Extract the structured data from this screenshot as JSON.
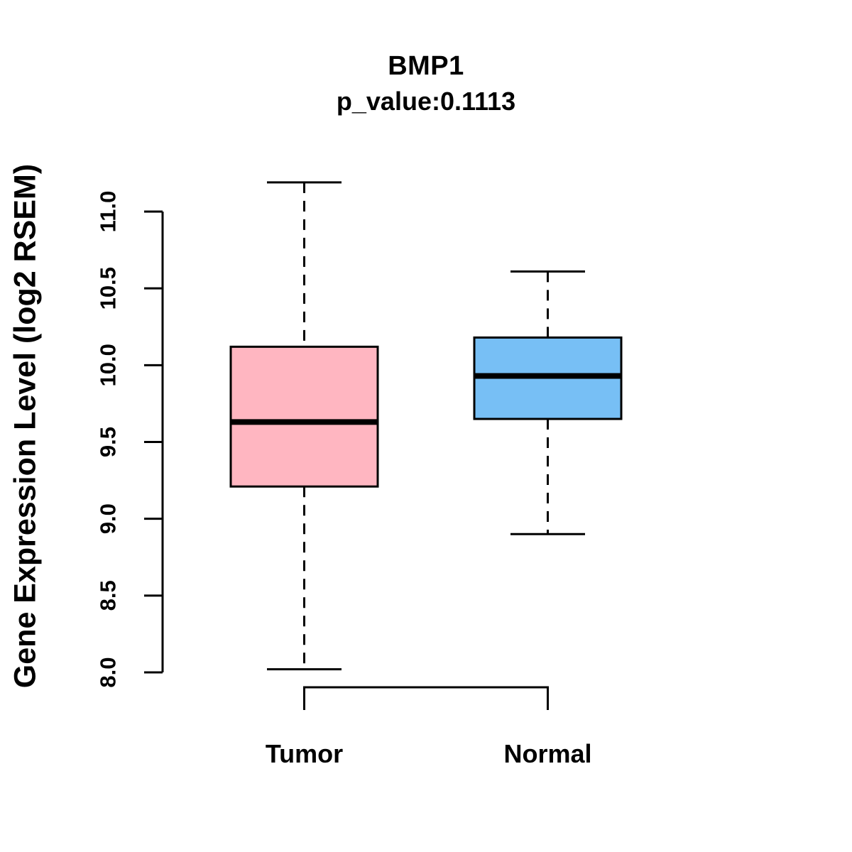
{
  "figure": {
    "background": "#FFFFFF"
  },
  "chart_data": {
    "type": "boxplot",
    "title": "BMP1",
    "subtitle": "p_value:0.1113",
    "ylabel": "Gene Expression Level (log2 RSEM)",
    "xlabel": "",
    "categories": [
      "Tumor",
      "Normal"
    ],
    "series": [
      {
        "name": "Tumor",
        "fill_color": "#FFB6C1",
        "whisker_low": 8.02,
        "q1": 9.21,
        "median": 9.63,
        "q3": 10.12,
        "whisker_high": 11.19
      },
      {
        "name": "Normal",
        "fill_color": "#77BFF5",
        "whisker_low": 8.9,
        "q1": 9.65,
        "median": 9.93,
        "q3": 10.18,
        "whisker_high": 10.61
      }
    ],
    "ylim": [
      8.0,
      11.0
    ],
    "y_ticks": [
      8.0,
      8.5,
      9.0,
      9.5,
      10.0,
      10.5,
      11.0
    ],
    "y_tick_labels": [
      "8.0",
      "8.5",
      "9.0",
      "9.5",
      "10.0",
      "10.5",
      "11.0"
    ],
    "grid": false,
    "legend_position": "none",
    "border_color": "#000000",
    "median_color": "#000000",
    "whisker_style": "dashed",
    "axis_color": "#000000"
  }
}
